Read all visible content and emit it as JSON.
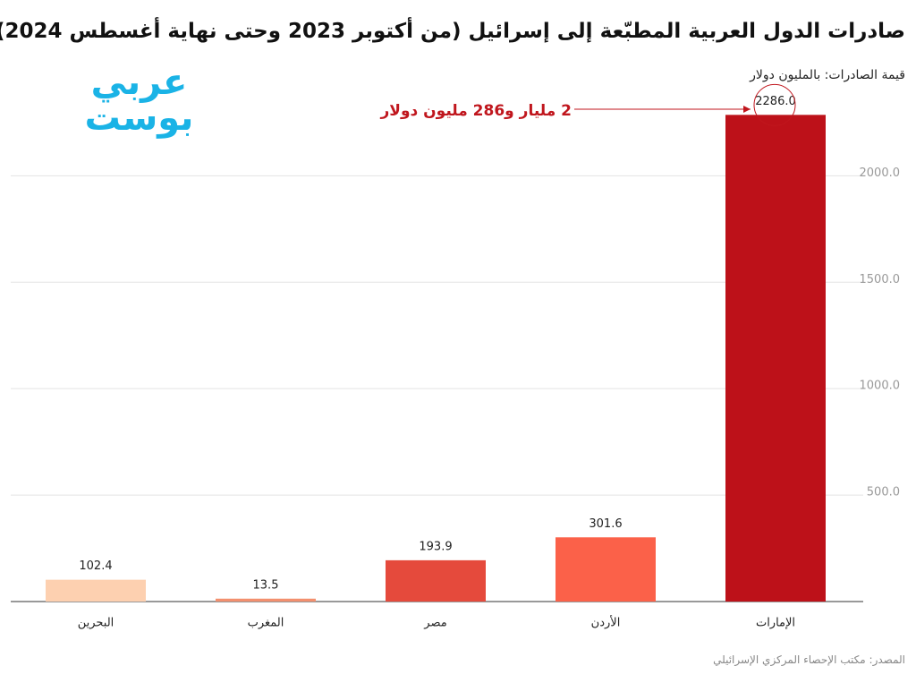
{
  "chart_data": {
    "type": "bar",
    "title": "صادرات الدول العربية المطبّعة إلى إسرائيل (من أكتوبر 2023 وحتى نهاية أغسطس 2024)",
    "subtitle": "قيمة الصادرات: بالمليون دولار",
    "annotation": "2 مليار و286 مليون دولار",
    "source": "المصدر: مكتب الإحصاء المركزي الإسرائيلي",
    "logo": [
      "عربي",
      "بوست"
    ],
    "categories": [
      "البحرين",
      "المغرب",
      "مصر",
      "الأردن",
      "الإمارات"
    ],
    "values": [
      102.4,
      13.5,
      193.9,
      301.6,
      2286
    ],
    "value_labels": [
      "102.4",
      "13.5",
      "193.9",
      "301.6",
      "2286.0"
    ],
    "colors": [
      "#fdd0b0",
      "#f3906f",
      "#e54a3c",
      "#fb6149",
      "#bd1119"
    ],
    "ylim": [
      0,
      2300
    ],
    "yticks": [
      {
        "value": 500,
        "label": "500.0"
      },
      {
        "value": 1000,
        "label": "1000.0"
      },
      {
        "value": 1500,
        "label": "1500.0"
      },
      {
        "value": 2000,
        "label": "2000.0"
      }
    ],
    "grid": true
  }
}
